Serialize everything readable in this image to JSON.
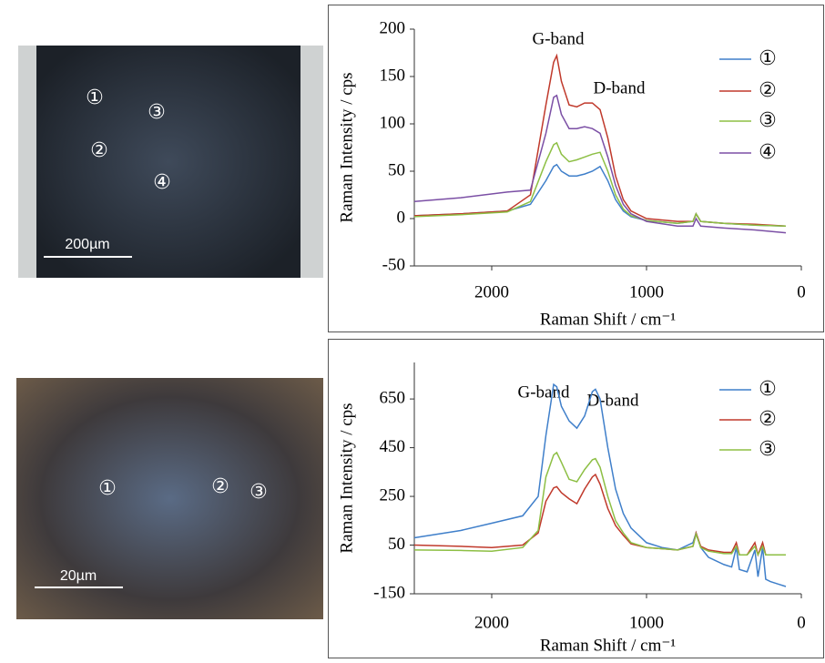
{
  "images": [
    {
      "labels": [
        "①",
        "②",
        "③",
        "④"
      ],
      "scale_bar": "200µm"
    },
    {
      "labels": [
        "①",
        "②",
        "③"
      ],
      "scale_bar": "20µm"
    }
  ],
  "chart_data": [
    {
      "type": "line",
      "ylabel": "Raman Intensity / cps",
      "xlabel": "Raman Shift / cm⁻¹",
      "annotations": [
        "G-band",
        "D-band"
      ],
      "xlim": [
        2500,
        0
      ],
      "xticks": [
        2000,
        1000,
        0
      ],
      "ylim": [
        -50,
        200
      ],
      "yticks": [
        -50,
        0,
        50,
        100,
        150,
        200
      ],
      "x": [
        2500,
        2200,
        1900,
        1750,
        1650,
        1600,
        1580,
        1550,
        1500,
        1450,
        1400,
        1350,
        1300,
        1250,
        1200,
        1150,
        1100,
        1000,
        800,
        700,
        680,
        650,
        500,
        300,
        100
      ],
      "series": [
        {
          "name": "①",
          "color": "#3f7fca",
          "values": [
            3,
            5,
            8,
            15,
            40,
            55,
            57,
            50,
            45,
            45,
            47,
            50,
            55,
            40,
            20,
            8,
            2,
            -2,
            -5,
            -3,
            5,
            -3,
            -5,
            -7,
            -8
          ]
        },
        {
          "name": "②",
          "color": "#c0392b",
          "values": [
            3,
            5,
            8,
            25,
            120,
            165,
            172,
            145,
            120,
            118,
            122,
            122,
            115,
            85,
            45,
            20,
            8,
            0,
            -3,
            -3,
            5,
            -3,
            -5,
            -6,
            -8
          ]
        },
        {
          "name": "③",
          "color": "#8dbf44",
          "values": [
            2,
            4,
            7,
            18,
            60,
            78,
            80,
            68,
            60,
            62,
            65,
            68,
            70,
            50,
            25,
            10,
            3,
            -2,
            -5,
            -3,
            5,
            -3,
            -5,
            -7,
            -8
          ]
        },
        {
          "name": "④",
          "color": "#7b4fa5",
          "values": [
            18,
            22,
            28,
            30,
            90,
            128,
            130,
            110,
            95,
            95,
            97,
            95,
            90,
            65,
            35,
            15,
            5,
            -3,
            -8,
            -8,
            0,
            -8,
            -10,
            -12,
            -15
          ]
        }
      ]
    },
    {
      "type": "line",
      "ylabel": "Raman Intensity / cps",
      "xlabel": "Raman Shift  / cm⁻¹",
      "annotations": [
        "G-band",
        "D-band"
      ],
      "xlim": [
        2500,
        0
      ],
      "xticks": [
        2000,
        1000,
        0
      ],
      "ylim": [
        -150,
        800
      ],
      "yticks": [
        -150,
        50,
        250,
        450,
        650
      ],
      "x": [
        2500,
        2200,
        2000,
        1800,
        1700,
        1650,
        1600,
        1580,
        1550,
        1500,
        1450,
        1400,
        1350,
        1330,
        1300,
        1250,
        1200,
        1150,
        1100,
        1000,
        900,
        800,
        700,
        680,
        650,
        600,
        500,
        450,
        420,
        400,
        350,
        300,
        280,
        250,
        230,
        200,
        150,
        100
      ],
      "series": [
        {
          "name": "①",
          "color": "#3f7fca",
          "values": [
            80,
            110,
            140,
            170,
            250,
            500,
            710,
            700,
            620,
            560,
            530,
            580,
            680,
            690,
            650,
            450,
            280,
            180,
            120,
            60,
            40,
            30,
            60,
            100,
            40,
            0,
            -30,
            -40,
            40,
            -50,
            -60,
            30,
            -80,
            40,
            -90,
            -100,
            -110,
            -120
          ]
        },
        {
          "name": "②",
          "color": "#c0392b",
          "values": [
            50,
            45,
            40,
            50,
            100,
            230,
            285,
            290,
            265,
            240,
            220,
            280,
            330,
            340,
            300,
            200,
            130,
            90,
            55,
            40,
            35,
            30,
            45,
            100,
            45,
            30,
            20,
            20,
            60,
            10,
            10,
            60,
            10,
            60,
            10,
            10,
            10,
            10
          ]
        },
        {
          "name": "③",
          "color": "#8dbf44",
          "values": [
            30,
            28,
            25,
            40,
            110,
            330,
            420,
            430,
            390,
            320,
            310,
            360,
            400,
            405,
            370,
            250,
            150,
            100,
            60,
            40,
            35,
            30,
            45,
            95,
            40,
            25,
            15,
            15,
            45,
            10,
            10,
            45,
            10,
            45,
            10,
            10,
            10,
            10
          ]
        }
      ]
    }
  ]
}
